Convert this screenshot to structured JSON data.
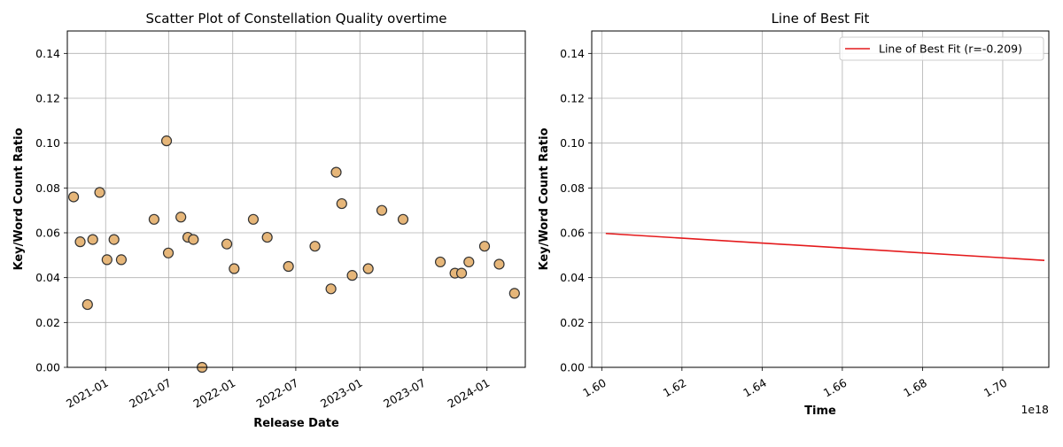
{
  "chart_data": [
    {
      "type": "scatter",
      "title": "Scatter Plot of Constellation Quality overtime",
      "xlabel": "Release Date",
      "ylabel": "Key/Word Count Ratio",
      "ylim": [
        0,
        0.15
      ],
      "xlim": [
        "2020-09-13",
        "2024-04-20"
      ],
      "grid": true,
      "x_ticks": [
        "2021-01",
        "2021-07",
        "2022-01",
        "2022-07",
        "2023-01",
        "2023-07",
        "2024-01"
      ],
      "y_ticks": [
        "0.00",
        "0.02",
        "0.04",
        "0.06",
        "0.08",
        "0.10",
        "0.12",
        "0.14"
      ],
      "marker_color": "#e6b679",
      "marker_edge": "#333333",
      "points": [
        {
          "x": "2020-10-01",
          "y": 0.076
        },
        {
          "x": "2020-10-20",
          "y": 0.056
        },
        {
          "x": "2020-11-10",
          "y": 0.028
        },
        {
          "x": "2020-11-25",
          "y": 0.057
        },
        {
          "x": "2020-12-15",
          "y": 0.078
        },
        {
          "x": "2021-01-05",
          "y": 0.048
        },
        {
          "x": "2021-01-25",
          "y": 0.057
        },
        {
          "x": "2021-02-15",
          "y": 0.048
        },
        {
          "x": "2021-05-20",
          "y": 0.066
        },
        {
          "x": "2021-06-25",
          "y": 0.101
        },
        {
          "x": "2021-06-30",
          "y": 0.051
        },
        {
          "x": "2021-08-05",
          "y": 0.067
        },
        {
          "x": "2021-08-25",
          "y": 0.058
        },
        {
          "x": "2021-09-10",
          "y": 0.057
        },
        {
          "x": "2021-10-05",
          "y": 0.0
        },
        {
          "x": "2021-12-15",
          "y": 0.055
        },
        {
          "x": "2022-01-05",
          "y": 0.044
        },
        {
          "x": "2022-03-01",
          "y": 0.066
        },
        {
          "x": "2022-04-10",
          "y": 0.058
        },
        {
          "x": "2022-06-10",
          "y": 0.045
        },
        {
          "x": "2022-08-25",
          "y": 0.054
        },
        {
          "x": "2022-10-10",
          "y": 0.035
        },
        {
          "x": "2022-10-25",
          "y": 0.087
        },
        {
          "x": "2022-11-10",
          "y": 0.073
        },
        {
          "x": "2022-12-10",
          "y": 0.041
        },
        {
          "x": "2023-01-25",
          "y": 0.044
        },
        {
          "x": "2023-03-05",
          "y": 0.07
        },
        {
          "x": "2023-05-05",
          "y": 0.066
        },
        {
          "x": "2023-08-20",
          "y": 0.047
        },
        {
          "x": "2023-10-01",
          "y": 0.042
        },
        {
          "x": "2023-10-20",
          "y": 0.042
        },
        {
          "x": "2023-11-10",
          "y": 0.047
        },
        {
          "x": "2023-12-25",
          "y": 0.054
        },
        {
          "x": "2024-02-05",
          "y": 0.046
        },
        {
          "x": "2024-03-20",
          "y": 0.033
        }
      ]
    },
    {
      "type": "line",
      "title": "Line of Best Fit",
      "xlabel": "Time",
      "ylabel": "Key/Word Count Ratio",
      "x_offset_label": "1e18",
      "ylim": [
        0,
        0.15
      ],
      "xlim": [
        1.5975,
        1.7115
      ],
      "grid": true,
      "x_ticks": [
        "1.60",
        "1.62",
        "1.64",
        "1.66",
        "1.68",
        "1.70"
      ],
      "y_ticks": [
        "0.00",
        "0.02",
        "0.04",
        "0.06",
        "0.08",
        "0.10",
        "0.12",
        "0.14"
      ],
      "legend": {
        "placement": "top-right",
        "entries": [
          "Line of Best Fit (r=-0.209)"
        ]
      },
      "series": [
        {
          "name": "Line of Best Fit (r=-0.209)",
          "color": "#e41a1c",
          "x": [
            1.601,
            1.7104
          ],
          "y": [
            0.0597,
            0.0477
          ]
        }
      ]
    }
  ]
}
